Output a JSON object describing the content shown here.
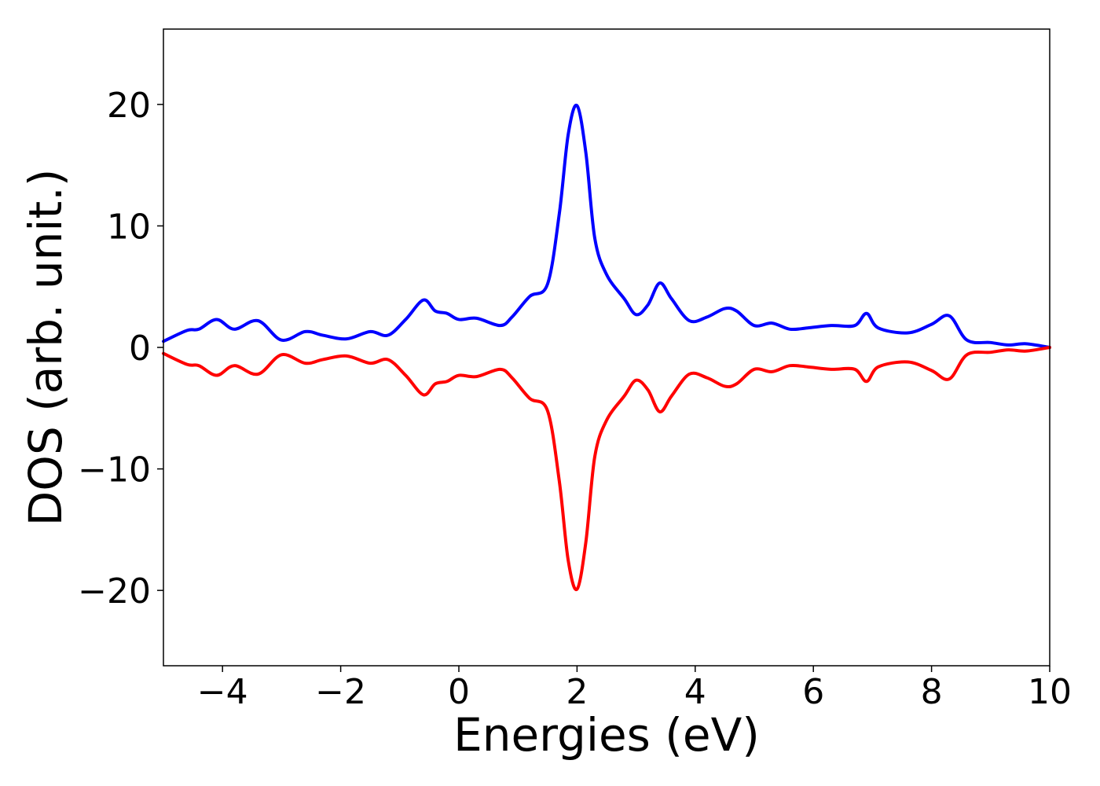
{
  "chart_data": {
    "type": "line",
    "title": "",
    "xlabel": "Energies (eV)",
    "ylabel": "DOS (arb. unit.)",
    "xlim": [
      -5,
      10
    ],
    "ylim": [
      -26.2,
      26.2
    ],
    "grid": false,
    "legend": "none",
    "x_ticks": [
      -4,
      -2,
      0,
      2,
      4,
      6,
      8,
      10
    ],
    "x_tick_labels": [
      "−4",
      "−2",
      "0",
      "2",
      "4",
      "6",
      "8",
      "10"
    ],
    "y_ticks": [
      -20,
      -10,
      0,
      10,
      20
    ],
    "y_tick_labels": [
      "−20",
      "−10",
      "0",
      "10",
      "20"
    ],
    "series": [
      {
        "color": "#0000ff",
        "x": [
          -5.0,
          -4.6,
          -4.4,
          -4.1,
          -3.8,
          -3.4,
          -3.0,
          -2.6,
          -2.3,
          -1.9,
          -1.5,
          -1.2,
          -0.9,
          -0.6,
          -0.4,
          -0.2,
          0.0,
          0.3,
          0.7,
          0.9,
          1.2,
          1.5,
          1.7,
          1.85,
          2.0,
          2.15,
          2.3,
          2.5,
          2.8,
          3.0,
          3.2,
          3.4,
          3.6,
          3.9,
          4.2,
          4.5,
          4.7,
          5.0,
          5.3,
          5.6,
          5.9,
          6.3,
          6.7,
          6.9,
          7.1,
          7.6,
          8.0,
          8.3,
          8.6,
          9.0,
          9.3,
          9.6,
          10.0
        ],
        "y": [
          0.5,
          1.4,
          1.5,
          2.3,
          1.5,
          2.2,
          0.6,
          1.3,
          1.0,
          0.7,
          1.3,
          1.0,
          2.3,
          3.9,
          3.0,
          2.8,
          2.3,
          2.4,
          1.8,
          2.5,
          4.2,
          5.2,
          11.0,
          17.5,
          19.9,
          16.0,
          9.0,
          6.0,
          4.0,
          2.7,
          3.5,
          5.3,
          4.0,
          2.2,
          2.5,
          3.2,
          3.0,
          1.8,
          2.0,
          1.5,
          1.6,
          1.8,
          1.8,
          2.8,
          1.6,
          1.2,
          1.9,
          2.6,
          0.6,
          0.4,
          0.2,
          0.3,
          0.0
        ]
      },
      {
        "color": "#ff0000",
        "x": [
          -5.0,
          -4.6,
          -4.4,
          -4.1,
          -3.8,
          -3.4,
          -3.0,
          -2.6,
          -2.3,
          -1.9,
          -1.5,
          -1.2,
          -0.9,
          -0.6,
          -0.4,
          -0.2,
          0.0,
          0.3,
          0.7,
          0.9,
          1.2,
          1.5,
          1.7,
          1.85,
          2.0,
          2.15,
          2.3,
          2.5,
          2.8,
          3.0,
          3.2,
          3.4,
          3.6,
          3.9,
          4.2,
          4.5,
          4.7,
          5.0,
          5.3,
          5.6,
          5.9,
          6.3,
          6.7,
          6.9,
          7.1,
          7.6,
          8.0,
          8.3,
          8.6,
          9.0,
          9.3,
          9.6,
          10.0
        ],
        "y": [
          -0.5,
          -1.4,
          -1.5,
          -2.3,
          -1.5,
          -2.2,
          -0.6,
          -1.3,
          -1.0,
          -0.7,
          -1.3,
          -1.0,
          -2.3,
          -3.9,
          -3.0,
          -2.8,
          -2.3,
          -2.4,
          -1.8,
          -2.5,
          -4.2,
          -5.2,
          -11.0,
          -17.5,
          -19.9,
          -16.0,
          -9.0,
          -6.0,
          -4.0,
          -2.7,
          -3.5,
          -5.3,
          -4.0,
          -2.2,
          -2.5,
          -3.2,
          -3.0,
          -1.8,
          -2.0,
          -1.5,
          -1.6,
          -1.8,
          -1.8,
          -2.8,
          -1.6,
          -1.2,
          -1.9,
          -2.6,
          -0.6,
          -0.4,
          -0.2,
          -0.3,
          0.0
        ]
      }
    ]
  }
}
